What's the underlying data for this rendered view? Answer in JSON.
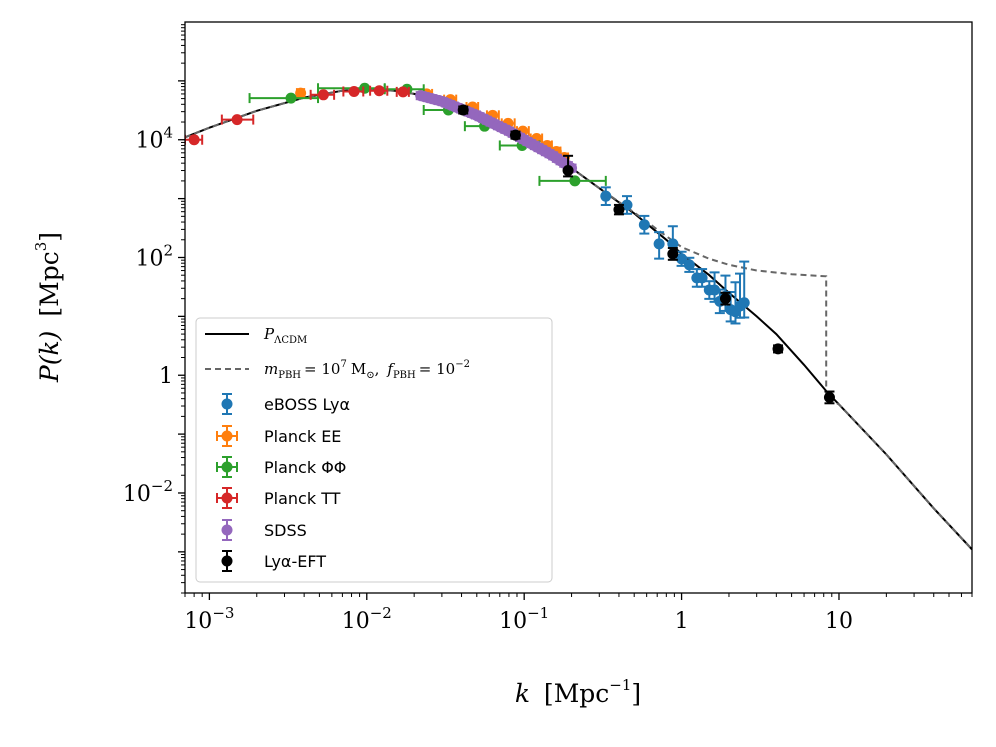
{
  "chart_data": {
    "type": "scatter",
    "xscale": "log",
    "yscale": "log",
    "xlim": [
      0.0007,
      70
    ],
    "ylim": [
      0.0002,
      1000000
    ],
    "xlabel": {
      "main": "k",
      "unit": "Mpc",
      "unit_exp": "−1"
    },
    "ylabel": {
      "main": "P(k)",
      "unit": "Mpc",
      "unit_exp": "3"
    },
    "x_ticks": [
      {
        "value": 0.001,
        "base": "10",
        "exp": "−3"
      },
      {
        "value": 0.01,
        "base": "10",
        "exp": "−2"
      },
      {
        "value": 0.1,
        "base": "10",
        "exp": "−1"
      },
      {
        "value": 1,
        "base": "1",
        "exp": ""
      },
      {
        "value": 10,
        "base": "10",
        "exp": ""
      }
    ],
    "y_ticks": [
      {
        "value": 10000,
        "base": "10",
        "exp": "4"
      },
      {
        "value": 100,
        "base": "10",
        "exp": "2"
      },
      {
        "value": 1,
        "base": "1",
        "exp": ""
      },
      {
        "value": 0.01,
        "base": "10",
        "exp": "−2"
      }
    ],
    "lines": [
      {
        "name": "P_ΛCDM",
        "label_main": "P",
        "label_sub": "ΛCDM",
        "style": "solid",
        "color": "#000000",
        "points": [
          [
            0.0007,
            11000
          ],
          [
            0.001,
            16000
          ],
          [
            0.002,
            31000
          ],
          [
            0.004,
            52000
          ],
          [
            0.007,
            68000
          ],
          [
            0.01,
            72000
          ],
          [
            0.015,
            68000
          ],
          [
            0.02,
            60000
          ],
          [
            0.03,
            45000
          ],
          [
            0.05,
            26000
          ],
          [
            0.08,
            14000
          ],
          [
            0.1,
            10000
          ],
          [
            0.15,
            5500
          ],
          [
            0.2,
            3300
          ],
          [
            0.3,
            1500
          ],
          [
            0.5,
            560
          ],
          [
            0.8,
            200
          ],
          [
            1,
            115
          ],
          [
            1.5,
            50
          ],
          [
            2,
            25
          ],
          [
            3,
            10
          ],
          [
            4,
            5
          ],
          [
            6,
            1.5
          ],
          [
            8.5,
            0.5
          ],
          [
            10,
            0.32
          ],
          [
            20,
            0.045
          ],
          [
            40,
            0.0055
          ],
          [
            70,
            0.0011
          ]
        ]
      },
      {
        "name": "m_PBH = 10^7 M_sun, f_PBH = 10^-2",
        "label_m": "m",
        "label_m_sub": "PBH",
        "label_mass": "= 10",
        "label_mass_exp": "7",
        "label_msun": "M",
        "label_msun_sub": "⊙",
        "label_f": "f",
        "label_f_sub": "PBH",
        "label_fval": "= 10",
        "label_fval_exp": "−2",
        "style": "dashed",
        "color": "#666666",
        "points": [
          [
            0.0007,
            11000
          ],
          [
            0.001,
            16000
          ],
          [
            0.002,
            31000
          ],
          [
            0.004,
            52000
          ],
          [
            0.007,
            68000
          ],
          [
            0.01,
            72000
          ],
          [
            0.015,
            68000
          ],
          [
            0.02,
            60000
          ],
          [
            0.03,
            45000
          ],
          [
            0.05,
            26000
          ],
          [
            0.08,
            14000
          ],
          [
            0.1,
            10000
          ],
          [
            0.15,
            5500
          ],
          [
            0.2,
            3300
          ],
          [
            0.3,
            1500
          ],
          [
            0.5,
            580
          ],
          [
            0.8,
            230
          ],
          [
            1,
            150
          ],
          [
            1.5,
            95
          ],
          [
            2,
            75
          ],
          [
            3,
            60
          ],
          [
            5,
            52
          ],
          [
            8.3,
            48
          ],
          [
            8.3,
            0.4
          ],
          [
            10,
            0.32
          ],
          [
            20,
            0.045
          ],
          [
            40,
            0.0055
          ],
          [
            70,
            0.0011
          ]
        ]
      }
    ],
    "series": [
      {
        "name": "eBOSS Lyα",
        "color": "#1f77b4",
        "points": [
          {
            "x": 0.33,
            "y": 1100,
            "yerr": [
              0.15,
              0.15
            ]
          },
          {
            "x": 0.45,
            "y": 780,
            "yerr": [
              0.15,
              0.15
            ]
          },
          {
            "x": 0.58,
            "y": 360,
            "yerr": [
              0.15,
              0.15
            ]
          },
          {
            "x": 0.72,
            "y": 170,
            "yerr": [
              0.25,
              0.2
            ]
          },
          {
            "x": 0.88,
            "y": 170,
            "yerr": [
              0.2,
              0.3
            ]
          },
          {
            "x": 1.0,
            "y": 95,
            "yerr": [
              0.12,
              0.12
            ]
          },
          {
            "x": 1.12,
            "y": 75,
            "yerr": [
              0.12,
              0.12
            ]
          },
          {
            "x": 1.25,
            "y": 45,
            "yerr": [
              0.15,
              0.15
            ]
          },
          {
            "x": 1.35,
            "y": 45,
            "yerr": [
              0.15,
              0.15
            ]
          },
          {
            "x": 1.5,
            "y": 28,
            "yerr": [
              0.15,
              0.15
            ]
          },
          {
            "x": 1.62,
            "y": 28,
            "yerr": [
              0.2,
              0.3
            ]
          },
          {
            "x": 1.75,
            "y": 18,
            "yerr": [
              0.2,
              0.2
            ]
          },
          {
            "x": 1.9,
            "y": 22,
            "yerr": [
              0.25,
              0.35
            ]
          },
          {
            "x": 2.05,
            "y": 13,
            "yerr": [
              0.2,
              0.3
            ]
          },
          {
            "x": 2.2,
            "y": 12,
            "yerr": [
              0.2,
              0.5
            ]
          },
          {
            "x": 2.35,
            "y": 15,
            "yerr": [
              0.2,
              0.55
            ]
          },
          {
            "x": 2.5,
            "y": 17,
            "yerr": [
              0.25,
              0.7
            ]
          }
        ]
      },
      {
        "name": "Planck EE",
        "color": "#ff7f0e",
        "points": [
          {
            "x": 0.0038,
            "y": 62000,
            "xerr": [
              0.0036,
              0.004
            ]
          },
          {
            "x": 0.024,
            "y": 60000,
            "xerr": [
              0.022,
              0.026
            ]
          },
          {
            "x": 0.034,
            "y": 48000,
            "xerr": [
              0.031,
              0.037
            ]
          },
          {
            "x": 0.047,
            "y": 36000,
            "xerr": [
              0.043,
              0.051
            ]
          },
          {
            "x": 0.063,
            "y": 26000,
            "xerr": [
              0.058,
              0.069
            ]
          },
          {
            "x": 0.079,
            "y": 19000,
            "xerr": [
              0.072,
              0.087
            ]
          },
          {
            "x": 0.098,
            "y": 14000,
            "xerr": [
              0.09,
              0.107
            ]
          },
          {
            "x": 0.12,
            "y": 10500,
            "xerr": [
              0.11,
              0.13
            ]
          },
          {
            "x": 0.14,
            "y": 8000,
            "xerr": [
              0.13,
              0.15
            ]
          },
          {
            "x": 0.16,
            "y": 6300,
            "xerr": [
              0.15,
              0.17
            ]
          },
          {
            "x": 0.18,
            "y": 5000,
            "xerr": [
              0.17,
              0.19
            ]
          }
        ]
      },
      {
        "name": "Planck ΦΦ",
        "color": "#2ca02c",
        "points": [
          {
            "x": 0.0033,
            "y": 51000,
            "xerr": [
              0.0018,
              0.0049
            ]
          },
          {
            "x": 0.0097,
            "y": 75000,
            "xerr": [
              0.0049,
              0.013
            ]
          },
          {
            "x": 0.018,
            "y": 72000,
            "xerr": [
              0.013,
              0.023
            ]
          },
          {
            "x": 0.033,
            "y": 32000,
            "xerr": [
              0.023,
              0.042
            ]
          },
          {
            "x": 0.056,
            "y": 17000,
            "xerr": [
              0.042,
              0.07
            ]
          },
          {
            "x": 0.097,
            "y": 8000,
            "xerr": [
              0.07,
              0.125
            ]
          },
          {
            "x": 0.21,
            "y": 2000,
            "xerr": [
              0.125,
              0.33
            ]
          }
        ]
      },
      {
        "name": "Planck TT",
        "color": "#d62728",
        "points": [
          {
            "x": 0.0008,
            "y": 10000,
            "xerr": [
              0.0007,
              0.0009
            ]
          },
          {
            "x": 0.0015,
            "y": 22000,
            "xerr": [
              0.0012,
              0.0019
            ]
          },
          {
            "x": 0.0053,
            "y": 58000,
            "xerr": [
              0.0044,
              0.0062
            ]
          },
          {
            "x": 0.0083,
            "y": 66000,
            "xerr": [
              0.0071,
              0.0095
            ]
          },
          {
            "x": 0.012,
            "y": 68000,
            "xerr": [
              0.0105,
              0.0135
            ]
          },
          {
            "x": 0.017,
            "y": 65000,
            "xerr": [
              0.0155,
              0.0185
            ]
          }
        ]
      },
      {
        "name": "SDSS",
        "color": "#9467bd",
        "band": {
          "x_start": 0.022,
          "x_end": 0.2,
          "count": 42,
          "yerr_frac": 0.15
        }
      },
      {
        "name": "Lyα-EFT",
        "color": "#000000",
        "points": [
          {
            "x": 0.041,
            "y": 32000,
            "yerr": [
              0.06,
              0.06
            ]
          },
          {
            "x": 0.088,
            "y": 12000,
            "yerr": [
              0.06,
              0.06
            ]
          },
          {
            "x": 0.19,
            "y": 3000,
            "yerr": [
              0.1,
              0.25
            ]
          },
          {
            "x": 0.4,
            "y": 650,
            "yerr": [
              0.08,
              0.08
            ]
          },
          {
            "x": 0.88,
            "y": 115,
            "yerr": [
              0.1,
              0.1
            ]
          },
          {
            "x": 1.9,
            "y": 20,
            "yerr": [
              0.1,
              0.1
            ]
          },
          {
            "x": 4.1,
            "y": 2.8,
            "yerr": [
              0.06,
              0.06
            ]
          },
          {
            "x": 8.7,
            "y": 0.42,
            "yerr": [
              0.1,
              0.1
            ]
          }
        ]
      }
    ],
    "legend": {
      "placement": "lower-left",
      "entries": [
        "P_ΛCDM",
        "m_PBH = 10^7 M_sun, f_PBH = 10^-2",
        "eBOSS Lyα",
        "Planck EE",
        "Planck ΦΦ",
        "Planck TT",
        "SDSS",
        "Lyα-EFT"
      ]
    }
  }
}
